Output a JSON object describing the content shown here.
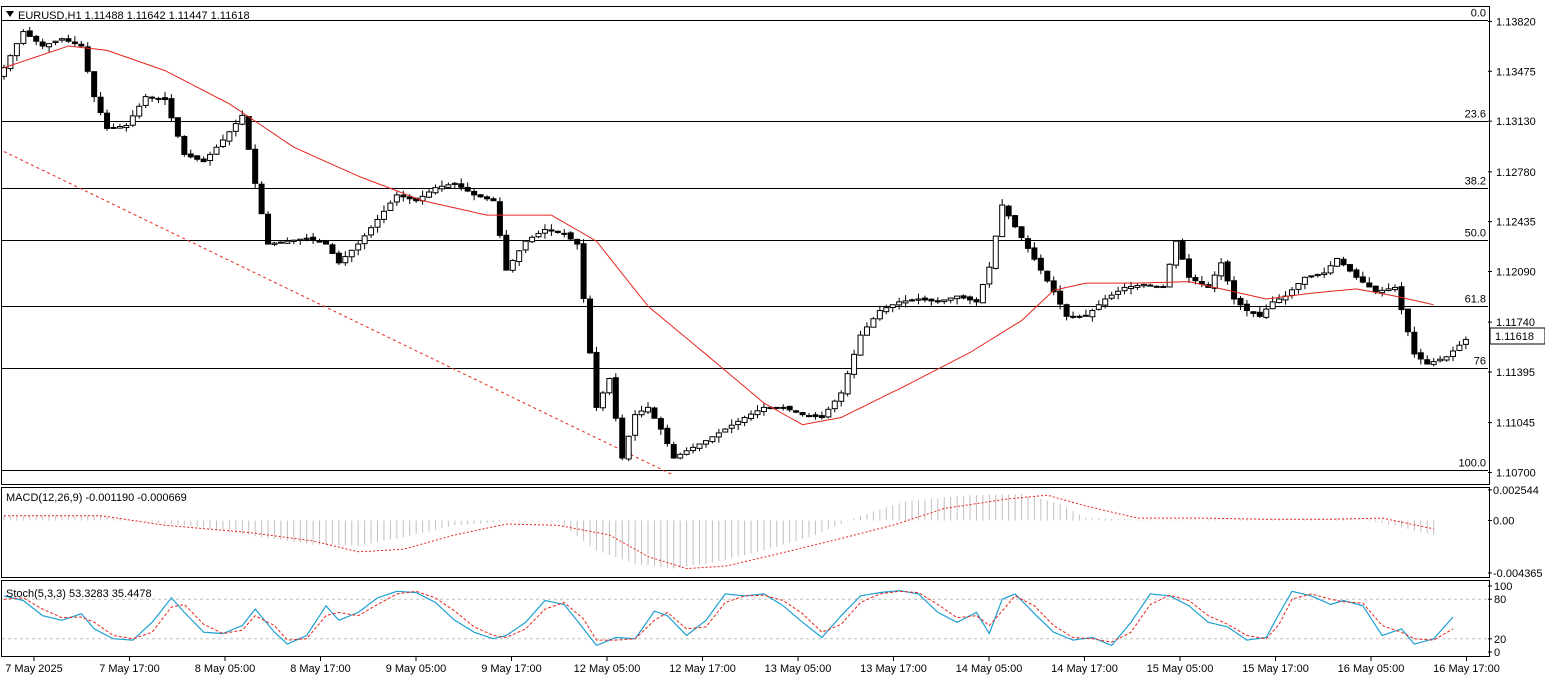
{
  "header": {
    "symbol_info": "EURUSD,H1  1.11488 1.11642 1.11447 1.11618",
    "menu_icon": "triangle-down-icon"
  },
  "colors": {
    "background": "#ffffff",
    "grid_border": "#000000",
    "ma_line": "#e8241b",
    "trendline": "#e8241b",
    "macd_hist": "#c0c0c0",
    "macd_signal": "#e8241b",
    "stoch_main": "#1ea0d2",
    "stoch_signal": "#e8241b",
    "price_tag_bg": "#ffffff"
  },
  "chart_data": [
    {
      "type": "candlestick",
      "title": "EURUSD,H1",
      "ohlc_readout": {
        "open": 1.11488,
        "high": 1.11642,
        "low": 1.11447,
        "close": 1.11618
      },
      "current_price": "1.11618",
      "ylim": [
        1.1062,
        1.1392
      ],
      "y_ticks": [
        "1.13820",
        "1.13475",
        "1.13130",
        "1.12780",
        "1.12435",
        "1.12090",
        "1.11740",
        "1.11395",
        "1.11045",
        "1.10700"
      ],
      "fibonacci_levels": [
        {
          "label": "0.0",
          "price": 1.1383
        },
        {
          "label": "23.6",
          "price": 1.1313
        },
        {
          "label": "38.2",
          "price": 1.1267
        },
        {
          "label": "50.0",
          "price": 1.1231
        },
        {
          "label": "61.8",
          "price": 1.1185
        },
        {
          "label": "76",
          "price": 1.1142
        },
        {
          "label": "100.0",
          "price": 1.1072
        }
      ],
      "x_ticks": [
        "7 May 2025",
        "7 May 17:00",
        "8 May 05:00",
        "8 May 17:00",
        "9 May 05:00",
        "9 May 17:00",
        "12 May 05:00",
        "12 May 17:00",
        "13 May 05:00",
        "13 May 17:00",
        "14 May 05:00",
        "14 May 17:00",
        "15 May 05:00",
        "15 May 17:00",
        "16 May 05:00",
        "16 May 17:00"
      ],
      "close_path": [
        [
          0,
          1.135
        ],
        [
          3,
          1.1375
        ],
        [
          6,
          1.1365
        ],
        [
          9,
          1.137
        ],
        [
          12,
          1.1365
        ],
        [
          14,
          1.133
        ],
        [
          16,
          1.1308
        ],
        [
          19,
          1.131
        ],
        [
          22,
          1.133
        ],
        [
          25,
          1.1328
        ],
        [
          28,
          1.129
        ],
        [
          31,
          1.1285
        ],
        [
          34,
          1.13
        ],
        [
          37,
          1.1317
        ],
        [
          39,
          1.127
        ],
        [
          41,
          1.1228
        ],
        [
          44,
          1.123
        ],
        [
          47,
          1.1232
        ],
        [
          50,
          1.1228
        ],
        [
          52,
          1.1215
        ],
        [
          55,
          1.1228
        ],
        [
          58,
          1.1245
        ],
        [
          61,
          1.1262
        ],
        [
          64,
          1.1258
        ],
        [
          67,
          1.1267
        ],
        [
          70,
          1.127
        ],
        [
          73,
          1.1262
        ],
        [
          76,
          1.1258
        ],
        [
          78,
          1.121
        ],
        [
          81,
          1.123
        ],
        [
          84,
          1.1238
        ],
        [
          87,
          1.1235
        ],
        [
          89,
          1.1228
        ],
        [
          92,
          1.1115
        ],
        [
          94,
          1.1135
        ],
        [
          96,
          1.108
        ],
        [
          98,
          1.111
        ],
        [
          100,
          1.1115
        ],
        [
          102,
          1.11
        ],
        [
          104,
          1.108
        ],
        [
          106,
          1.1085
        ],
        [
          109,
          1.1092
        ],
        [
          112,
          1.11
        ],
        [
          115,
          1.1108
        ],
        [
          118,
          1.1115
        ],
        [
          121,
          1.1115
        ],
        [
          124,
          1.111
        ],
        [
          127,
          1.1108
        ],
        [
          130,
          1.1125
        ],
        [
          133,
          1.1165
        ],
        [
          136,
          1.1182
        ],
        [
          139,
          1.1188
        ],
        [
          142,
          1.119
        ],
        [
          145,
          1.1188
        ],
        [
          148,
          1.1192
        ],
        [
          151,
          1.1188
        ],
        [
          153,
          1.1212
        ],
        [
          155,
          1.1255
        ],
        [
          157,
          1.124
        ],
        [
          159,
          1.1225
        ],
        [
          161,
          1.121
        ],
        [
          163,
          1.1195
        ],
        [
          165,
          1.1178
        ],
        [
          168,
          1.1178
        ],
        [
          171,
          1.119
        ],
        [
          174,
          1.1198
        ],
        [
          177,
          1.12
        ],
        [
          180,
          1.1198
        ],
        [
          182,
          1.123
        ],
        [
          184,
          1.1205
        ],
        [
          187,
          1.1198
        ],
        [
          189,
          1.1215
        ],
        [
          191,
          1.119
        ],
        [
          193,
          1.1182
        ],
        [
          195,
          1.1178
        ],
        [
          197,
          1.1188
        ],
        [
          199,
          1.1192
        ],
        [
          202,
          1.1205
        ],
        [
          205,
          1.1208
        ],
        [
          207,
          1.1218
        ],
        [
          210,
          1.1205
        ],
        [
          213,
          1.1195
        ],
        [
          216,
          1.1198
        ],
        [
          219,
          1.1152
        ],
        [
          221,
          1.1145
        ],
        [
          224,
          1.115
        ],
        [
          227,
          1.1162
        ]
      ],
      "moving_average": [
        [
          0,
          1.135
        ],
        [
          10,
          1.1365
        ],
        [
          16,
          1.1362
        ],
        [
          25,
          1.1348
        ],
        [
          35,
          1.1325
        ],
        [
          45,
          1.1295
        ],
        [
          55,
          1.1275
        ],
        [
          65,
          1.1258
        ],
        [
          75,
          1.1248
        ],
        [
          85,
          1.1248
        ],
        [
          92,
          1.123
        ],
        [
          100,
          1.1185
        ],
        [
          110,
          1.1148
        ],
        [
          118,
          1.1118
        ],
        [
          124,
          1.1103
        ],
        [
          130,
          1.1108
        ],
        [
          140,
          1.113
        ],
        [
          150,
          1.1153
        ],
        [
          158,
          1.1175
        ],
        [
          163,
          1.1196
        ],
        [
          168,
          1.1201
        ],
        [
          176,
          1.1201
        ],
        [
          184,
          1.1202
        ],
        [
          190,
          1.1196
        ],
        [
          196,
          1.119
        ],
        [
          203,
          1.1194
        ],
        [
          210,
          1.1197
        ],
        [
          216,
          1.1192
        ],
        [
          222,
          1.1186
        ]
      ],
      "trendline": [
        [
          0,
          1.1292
        ],
        [
          104,
          1.1068
        ]
      ]
    },
    {
      "type": "histogram+line",
      "title": "MACD(12,26,9) -0.001190 -0.000669",
      "macd_readout": {
        "main": -0.00119,
        "signal": -0.000669
      },
      "ylim": [
        -0.0047,
        0.0027
      ],
      "y_ticks": [
        "0.002544",
        "0.00",
        "-0.004365"
      ],
      "histogram": [
        [
          0,
          0.0004
        ],
        [
          15,
          0.0004
        ],
        [
          20,
          0.0
        ],
        [
          30,
          -0.0005
        ],
        [
          40,
          -0.0014
        ],
        [
          48,
          -0.002
        ],
        [
          55,
          -0.0021
        ],
        [
          62,
          -0.0014
        ],
        [
          70,
          -0.0004
        ],
        [
          78,
          -0.0001
        ],
        [
          86,
          -0.0001
        ],
        [
          92,
          -0.0025
        ],
        [
          98,
          -0.0036
        ],
        [
          104,
          -0.004
        ],
        [
          110,
          -0.0035
        ],
        [
          118,
          -0.0025
        ],
        [
          126,
          -0.0012
        ],
        [
          133,
          0.0004
        ],
        [
          140,
          0.0016
        ],
        [
          150,
          0.0021
        ],
        [
          158,
          0.0022
        ],
        [
          164,
          0.0014
        ],
        [
          168,
          0.0002
        ],
        [
          176,
          0.0001
        ],
        [
          184,
          0.0001
        ],
        [
          192,
          0.0001
        ],
        [
          200,
          0.0001
        ],
        [
          208,
          0.0002
        ],
        [
          214,
          -0.0002
        ],
        [
          222,
          -0.0012
        ]
      ],
      "signal_line": [
        [
          0,
          0.0004
        ],
        [
          15,
          0.0004
        ],
        [
          25,
          -0.0004
        ],
        [
          38,
          -0.001
        ],
        [
          48,
          -0.0017
        ],
        [
          55,
          -0.0026
        ],
        [
          62,
          -0.0024
        ],
        [
          70,
          -0.0012
        ],
        [
          78,
          -0.0003
        ],
        [
          86,
          -0.0004
        ],
        [
          94,
          -0.0012
        ],
        [
          100,
          -0.003
        ],
        [
          106,
          -0.004
        ],
        [
          112,
          -0.0038
        ],
        [
          120,
          -0.0028
        ],
        [
          130,
          -0.0015
        ],
        [
          138,
          -0.0004
        ],
        [
          146,
          0.001
        ],
        [
          156,
          0.0018
        ],
        [
          162,
          0.0021
        ],
        [
          168,
          0.0012
        ],
        [
          176,
          0.0002
        ],
        [
          186,
          0.0002
        ],
        [
          196,
          0.0001
        ],
        [
          206,
          0.0001
        ],
        [
          214,
          0.0002
        ],
        [
          222,
          -0.0007
        ]
      ]
    },
    {
      "type": "line",
      "title": "Stoch(5,3,3) 53.3283 35.4478",
      "stoch_readout": {
        "main": 53.3283,
        "signal": 35.4478
      },
      "ylim": [
        0,
        100
      ],
      "y_ticks": [
        "100",
        "80",
        "20",
        "0"
      ],
      "levels": [
        80,
        20
      ],
      "main": [
        [
          0,
          85
        ],
        [
          3,
          78
        ],
        [
          6,
          55
        ],
        [
          9,
          48
        ],
        [
          12,
          58
        ],
        [
          14,
          35
        ],
        [
          17,
          20
        ],
        [
          20,
          18
        ],
        [
          23,
          45
        ],
        [
          26,
          82
        ],
        [
          28,
          60
        ],
        [
          31,
          30
        ],
        [
          34,
          28
        ],
        [
          37,
          40
        ],
        [
          39,
          65
        ],
        [
          42,
          30
        ],
        [
          44,
          12
        ],
        [
          47,
          25
        ],
        [
          50,
          70
        ],
        [
          52,
          48
        ],
        [
          55,
          60
        ],
        [
          58,
          82
        ],
        [
          61,
          92
        ],
        [
          64,
          90
        ],
        [
          67,
          75
        ],
        [
          70,
          48
        ],
        [
          73,
          30
        ],
        [
          76,
          20
        ],
        [
          78,
          25
        ],
        [
          81,
          45
        ],
        [
          84,
          78
        ],
        [
          87,
          72
        ],
        [
          90,
          35
        ],
        [
          92,
          10
        ],
        [
          95,
          22
        ],
        [
          98,
          20
        ],
        [
          101,
          62
        ],
        [
          103,
          55
        ],
        [
          106,
          25
        ],
        [
          109,
          48
        ],
        [
          112,
          88
        ],
        [
          115,
          85
        ],
        [
          118,
          88
        ],
        [
          121,
          70
        ],
        [
          124,
          45
        ],
        [
          127,
          22
        ],
        [
          130,
          55
        ],
        [
          133,
          85
        ],
        [
          136,
          90
        ],
        [
          139,
          93
        ],
        [
          142,
          88
        ],
        [
          145,
          60
        ],
        [
          148,
          45
        ],
        [
          151,
          60
        ],
        [
          153,
          28
        ],
        [
          155,
          80
        ],
        [
          157,
          88
        ],
        [
          160,
          58
        ],
        [
          163,
          30
        ],
        [
          166,
          18
        ],
        [
          169,
          22
        ],
        [
          172,
          10
        ],
        [
          175,
          45
        ],
        [
          178,
          88
        ],
        [
          181,
          85
        ],
        [
          184,
          70
        ],
        [
          187,
          45
        ],
        [
          190,
          38
        ],
        [
          193,
          18
        ],
        [
          196,
          22
        ],
        [
          198,
          58
        ],
        [
          200,
          92
        ],
        [
          203,
          85
        ],
        [
          206,
          72
        ],
        [
          208,
          78
        ],
        [
          211,
          70
        ],
        [
          214,
          25
        ],
        [
          217,
          35
        ],
        [
          219,
          12
        ],
        [
          222,
          20
        ],
        [
          225,
          53
        ]
      ],
      "signal": [
        [
          0,
          80
        ],
        [
          3,
          82
        ],
        [
          6,
          65
        ],
        [
          9,
          52
        ],
        [
          12,
          53
        ],
        [
          14,
          45
        ],
        [
          17,
          25
        ],
        [
          20,
          20
        ],
        [
          23,
          30
        ],
        [
          26,
          68
        ],
        [
          28,
          72
        ],
        [
          31,
          42
        ],
        [
          34,
          28
        ],
        [
          37,
          33
        ],
        [
          39,
          55
        ],
        [
          42,
          40
        ],
        [
          44,
          18
        ],
        [
          47,
          20
        ],
        [
          50,
          55
        ],
        [
          52,
          60
        ],
        [
          55,
          55
        ],
        [
          58,
          72
        ],
        [
          61,
          88
        ],
        [
          64,
          92
        ],
        [
          67,
          82
        ],
        [
          70,
          62
        ],
        [
          73,
          38
        ],
        [
          76,
          25
        ],
        [
          78,
          22
        ],
        [
          81,
          35
        ],
        [
          84,
          65
        ],
        [
          87,
          75
        ],
        [
          90,
          50
        ],
        [
          92,
          18
        ],
        [
          95,
          18
        ],
        [
          98,
          20
        ],
        [
          101,
          48
        ],
        [
          103,
          60
        ],
        [
          106,
          35
        ],
        [
          109,
          38
        ],
        [
          112,
          75
        ],
        [
          115,
          85
        ],
        [
          118,
          86
        ],
        [
          121,
          78
        ],
        [
          124,
          58
        ],
        [
          127,
          30
        ],
        [
          130,
          42
        ],
        [
          133,
          75
        ],
        [
          136,
          88
        ],
        [
          139,
          92
        ],
        [
          142,
          90
        ],
        [
          145,
          72
        ],
        [
          148,
          52
        ],
        [
          151,
          55
        ],
        [
          153,
          40
        ],
        [
          155,
          62
        ],
        [
          157,
          85
        ],
        [
          160,
          70
        ],
        [
          163,
          40
        ],
        [
          166,
          22
        ],
        [
          169,
          20
        ],
        [
          172,
          15
        ],
        [
          175,
          30
        ],
        [
          178,
          72
        ],
        [
          181,
          86
        ],
        [
          184,
          78
        ],
        [
          187,
          55
        ],
        [
          190,
          42
        ],
        [
          193,
          25
        ],
        [
          196,
          20
        ],
        [
          198,
          42
        ],
        [
          200,
          80
        ],
        [
          203,
          88
        ],
        [
          206,
          80
        ],
        [
          208,
          76
        ],
        [
          211,
          74
        ],
        [
          214,
          40
        ],
        [
          217,
          30
        ],
        [
          219,
          20
        ],
        [
          222,
          18
        ],
        [
          225,
          35
        ]
      ]
    }
  ]
}
